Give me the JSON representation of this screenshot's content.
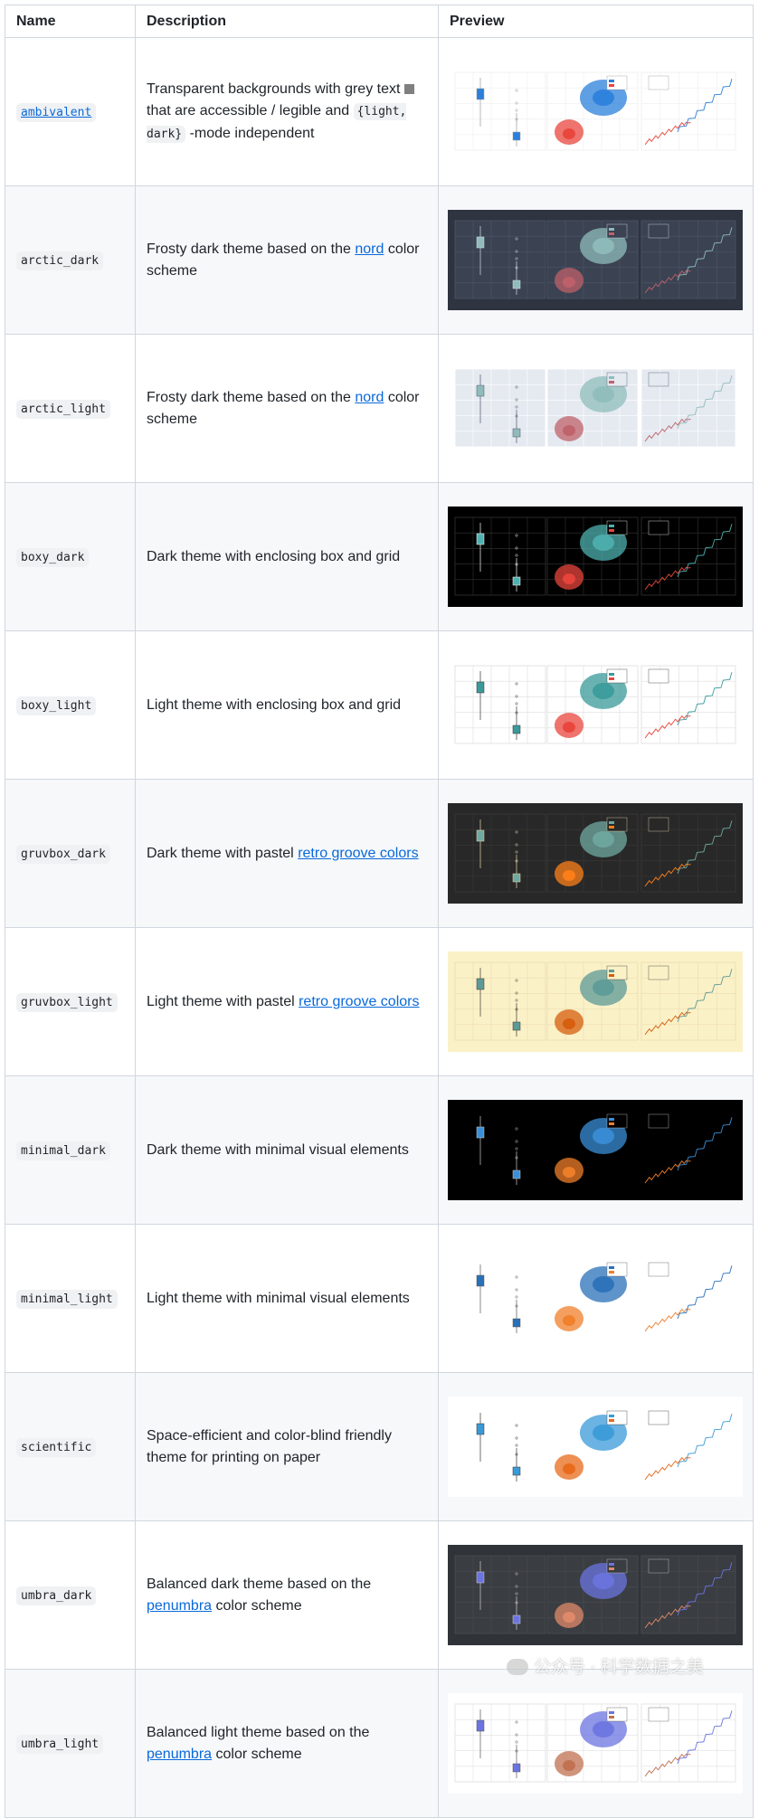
{
  "header": {
    "name": "Name",
    "description": "Description",
    "preview": "Preview"
  },
  "rows": [
    {
      "name": "ambivalent",
      "name_link": true,
      "desc_parts": [
        "Transparent backgrounds with grey text ",
        "that are accessible / legible and ",
        "{light, dark}",
        " -mode independent"
      ],
      "theme": {
        "bg": "#ffffff",
        "panel": "#ffffff",
        "grid": "#eeeeee",
        "text": "#999999",
        "a": "#2a7fdb",
        "b": "#e8453c",
        "box": "#d8e4ee"
      }
    },
    {
      "name": "arctic_dark",
      "desc_parts": [
        "Frosty dark theme based on the ",
        "nord",
        " color scheme"
      ],
      "theme": {
        "bg": "#2e3440",
        "panel": "#3b4252",
        "grid": "#4c566a",
        "text": "#d8dee9",
        "a": "#8fbcbb",
        "b": "#bf616a",
        "box": "#434c5e"
      }
    },
    {
      "name": "arctic_light",
      "desc_parts": [
        "Frosty dark theme based on the ",
        "nord",
        " color scheme"
      ],
      "theme": {
        "bg": "#ffffff",
        "panel": "#e5e9f0",
        "grid": "#ffffff",
        "text": "#4c566a",
        "a": "#8fbcbb",
        "b": "#bf616a",
        "box": "#eceff4"
      }
    },
    {
      "name": "boxy_dark",
      "desc_parts": [
        "Dark theme with enclosing box and grid"
      ],
      "theme": {
        "bg": "#000000",
        "panel": "#000000",
        "grid": "#333333",
        "text": "#ffffff",
        "a": "#4fb0b0",
        "b": "#e8453c",
        "box": "#111111"
      }
    },
    {
      "name": "boxy_light",
      "desc_parts": [
        "Light theme with enclosing box and grid"
      ],
      "theme": {
        "bg": "#ffffff",
        "panel": "#ffffff",
        "grid": "#dddddd",
        "text": "#333333",
        "a": "#3a9a9a",
        "b": "#e8453c",
        "box": "#f3f3f3"
      }
    },
    {
      "name": "gruvbox_dark",
      "desc_parts": [
        "Dark theme with pastel ",
        "retro groove colors"
      ],
      "theme": {
        "bg": "#282828",
        "panel": "#282828",
        "grid": "#3c3836",
        "text": "#ebdbb2",
        "a": "#6fa9a0",
        "b": "#fe8019",
        "box": "#32302f"
      }
    },
    {
      "name": "gruvbox_light",
      "desc_parts": [
        "Light theme with pastel ",
        "retro groove colors"
      ],
      "theme": {
        "bg": "#fbf1c7",
        "panel": "#fbf1c7",
        "grid": "#ebdbb2",
        "text": "#3c3836",
        "a": "#5c9a97",
        "b": "#d65d0e",
        "box": "#f2e5bc"
      }
    },
    {
      "name": "minimal_dark",
      "desc_parts": [
        "Dark theme with minimal visual elements"
      ],
      "theme": {
        "bg": "#000000",
        "panel": "#000000",
        "grid": "#000000",
        "text": "#cccccc",
        "a": "#3a8fd8",
        "b": "#f07f2a",
        "box": "#000000"
      }
    },
    {
      "name": "minimal_light",
      "desc_parts": [
        "Light theme with minimal visual elements"
      ],
      "theme": {
        "bg": "#ffffff",
        "panel": "#ffffff",
        "grid": "#ffffff",
        "text": "#555555",
        "a": "#2a70b8",
        "b": "#f07f2a",
        "box": "#ffffff"
      }
    },
    {
      "name": "scientific",
      "desc_parts": [
        "Space-efficient and color-blind friendly theme for printing on paper"
      ],
      "theme": {
        "bg": "#ffffff",
        "panel": "#ffffff",
        "grid": "#ffffff",
        "text": "#333333",
        "a": "#3a9ad8",
        "b": "#e86a1a",
        "box": "#ffffff"
      }
    },
    {
      "name": "umbra_dark",
      "desc_parts": [
        "Balanced dark theme based on the ",
        "penumbra",
        " color scheme"
      ],
      "theme": {
        "bg": "#303338",
        "panel": "#3a3d42",
        "grid": "#4a4d52",
        "text": "#cecece",
        "a": "#6b74e0",
        "b": "#e08a6a",
        "box": "#3a3d42"
      }
    },
    {
      "name": "umbra_light",
      "desc_parts": [
        "Balanced light theme based on the ",
        "penumbra",
        " color scheme"
      ],
      "theme": {
        "bg": "#ffffff",
        "panel": "#ffffff",
        "grid": "#e0e0e0",
        "text": "#555555",
        "a": "#6b74e0",
        "b": "#c07050",
        "box": "#ffffff"
      }
    }
  ],
  "watermark": "公众号 · 科学数据之美"
}
